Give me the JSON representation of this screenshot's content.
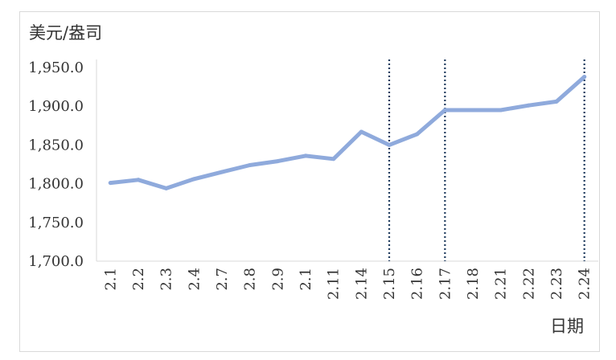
{
  "chart_data": {
    "type": "line",
    "ylabel": "美元/盎司",
    "xlabel": "日期",
    "categories": [
      "2.1",
      "2.2",
      "2.3",
      "2.4",
      "2.7",
      "2.8",
      "2.9",
      "2.1",
      "2.11",
      "2.14",
      "2.15",
      "2.16",
      "2.17",
      "2.18",
      "2.21",
      "2.22",
      "2.23",
      "2.24"
    ],
    "series": [
      {
        "values": [
          1801,
          1805,
          1794,
          1806,
          1815,
          1824,
          1829,
          1836,
          1832,
          1867,
          1850,
          1864,
          1895,
          1895,
          1895,
          1901,
          1906,
          1938
        ]
      }
    ],
    "ylim": [
      1700,
      1950
    ],
    "yticks": [
      "1,700.0",
      "1,750.0",
      "1,800.0",
      "1,850.0",
      "1,900.0",
      "1,950.0"
    ],
    "ytick_values": [
      1700,
      1750,
      1800,
      1850,
      1900,
      1950
    ],
    "vertical_markers": [
      "2.15",
      "2.17",
      "2.24"
    ],
    "line_color": "#8faadc",
    "marker_color": "#1f3b5e",
    "grid": false,
    "legend": "none"
  }
}
